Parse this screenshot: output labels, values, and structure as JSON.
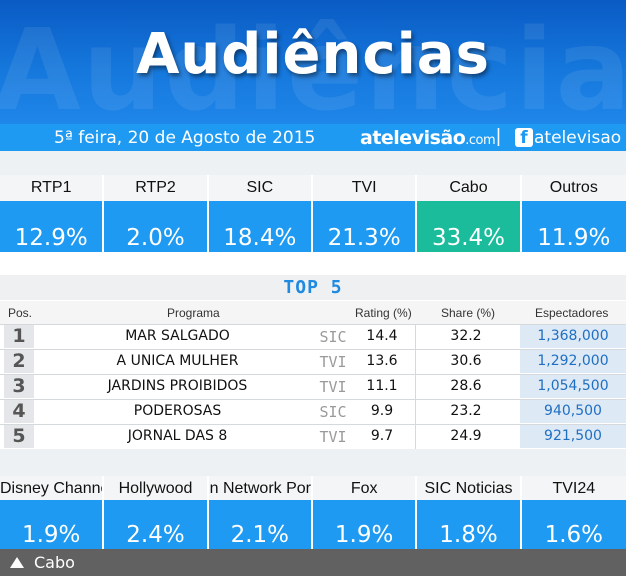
{
  "header": {
    "title": "Audiências",
    "date": "5ª feira, 20 de Agosto de 2015",
    "brand_main": "atelevisão",
    "brand_suffix": ".com",
    "separator": "|",
    "fb_icon": "f",
    "fb_handle": "atelevisao"
  },
  "channels": [
    {
      "label": "RTP1",
      "value": "12.9%"
    },
    {
      "label": "RTP2",
      "value": "2.0%"
    },
    {
      "label": "SIC",
      "value": "18.4%"
    },
    {
      "label": "TVI",
      "value": "21.3%"
    },
    {
      "label": "Cabo",
      "value": "33.4%",
      "highlight": true
    },
    {
      "label": "Outros",
      "value": "11.9%"
    }
  ],
  "top5": {
    "title": "TOP 5",
    "columns": {
      "pos": "Pos.",
      "program": "Programa",
      "rating": "Rating (%)",
      "share": "Share (%)",
      "viewers": "Espectadores"
    },
    "rows": [
      {
        "pos": "1",
        "program": "MAR SALGADO",
        "channel": "SIC",
        "rating": "14.4",
        "share": "32.2",
        "viewers": "1,368,000"
      },
      {
        "pos": "2",
        "program": "A UNICA MULHER",
        "channel": "TVI",
        "rating": "13.6",
        "share": "30.6",
        "viewers": "1,292,000"
      },
      {
        "pos": "3",
        "program": "JARDINS PROIBIDOS",
        "channel": "TVI",
        "rating": "11.1",
        "share": "28.6",
        "viewers": "1,054,500"
      },
      {
        "pos": "4",
        "program": "PODEROSAS",
        "channel": "SIC",
        "rating": "9.9",
        "share": "23.2",
        "viewers": "940,500"
      },
      {
        "pos": "5",
        "program": "JORNAL DAS 8",
        "channel": "TVI",
        "rating": "9.7",
        "share": "24.9",
        "viewers": "921,500"
      }
    ]
  },
  "cable": [
    {
      "label": "Disney Channel",
      "value": "1.9%"
    },
    {
      "label": "Hollywood",
      "value": "2.4%"
    },
    {
      "label": "Cartoon Network Por",
      "value": "2.1%"
    },
    {
      "label": "Fox",
      "value": "1.9%"
    },
    {
      "label": "SIC Noticias",
      "value": "1.8%"
    },
    {
      "label": "TVI24",
      "value": "1.6%"
    }
  ],
  "footer": {
    "label": "Cabo"
  },
  "colors": {
    "header_blue": "#1577db",
    "tile_blue": "#1f9af2",
    "highlight_teal": "#1abc9c",
    "footer_gray": "#616161"
  }
}
